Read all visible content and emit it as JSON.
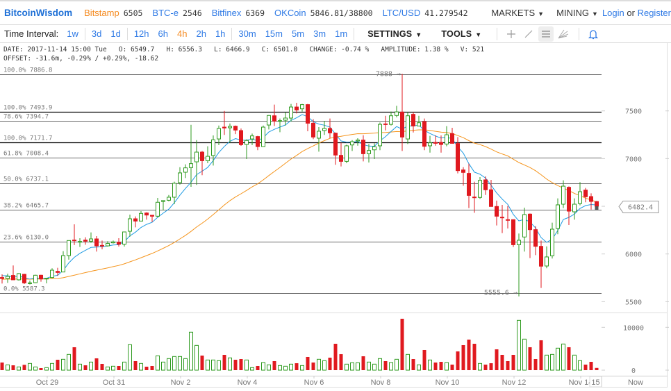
{
  "header": {
    "logo": "BitcoinWisdom",
    "markets": [
      {
        "name": "Bitstamp",
        "value": "6505",
        "active": true
      },
      {
        "name": "BTC-e",
        "value": "2546"
      },
      {
        "name": "Bitfinex",
        "value": "6369"
      },
      {
        "name": "OKCoin",
        "value": "5846.81/38800"
      },
      {
        "name": "LTC/USD",
        "value": "41.279542"
      }
    ],
    "markets_menu": "MARKETS",
    "mining_menu": "MINING",
    "login": "Login",
    "or": "or",
    "register": "Register"
  },
  "toolbar": {
    "label": "Time Interval:",
    "groups": [
      [
        "1w"
      ],
      [
        "3d",
        "1d"
      ],
      [
        "12h",
        "6h",
        "4h",
        "2h",
        "1h"
      ],
      [
        "30m",
        "15m",
        "5m",
        "3m",
        "1m"
      ]
    ],
    "selected": "4h",
    "settings": "SETTINGS",
    "tools": "TOOLS",
    "icons": [
      "crosshair-icon",
      "line-tool-icon",
      "horizontal-lines-icon",
      "fan-tool-icon",
      "bell-icon"
    ]
  },
  "info": {
    "line1": "DATE: 2017-11-14 15:00 Tue   O: 6549.7   H: 6556.3   L: 6466.9   C: 6501.0   CHANGE: -0.74 %   AMPLITUDE: 1.38 %   V: 521",
    "line2": "OFFSET: -31.6m, -0.29% / +0.29%, -18.62"
  },
  "colors": {
    "up": "#2e9a1f",
    "down": "#e0191f",
    "ma_fast": "#1e9be3",
    "ma_slow": "#f5941b",
    "accent": "#2f7ae5",
    "selected": "#f58a1f"
  },
  "chart_data": {
    "type": "candlestick",
    "interval": "4h",
    "fields": [
      "open",
      "high",
      "low",
      "close",
      "volume"
    ],
    "candles": [
      [
        5753,
        5787,
        5690,
        5743,
        1784
      ],
      [
        5743,
        5794,
        5697,
        5765,
        1243
      ],
      [
        5775,
        5879,
        5729,
        5729,
        1135
      ],
      [
        5729,
        5799,
        5721,
        5794,
        757
      ],
      [
        5787,
        5792,
        5685,
        5697,
        1243
      ],
      [
        5690,
        5721,
        5680,
        5697,
        1567
      ],
      [
        5699,
        5782,
        5695,
        5777,
        757
      ],
      [
        5777,
        5782,
        5709,
        5738,
        486
      ],
      [
        5738,
        5748,
        5692,
        5746,
        595
      ],
      [
        5753,
        5850,
        5746,
        5830,
        1567
      ],
      [
        5818,
        5855,
        5770,
        5806,
        2432
      ],
      [
        5811,
        6030,
        5811,
        5983,
        2540
      ],
      [
        5983,
        6141,
        5940,
        6141,
        3675
      ],
      [
        6146,
        6311,
        6093,
        6141,
        5351
      ],
      [
        6127,
        6165,
        6073,
        6131,
        1405
      ],
      [
        6146,
        6175,
        6097,
        6134,
        1135
      ],
      [
        6134,
        6226,
        6117,
        6158,
        1892
      ],
      [
        6158,
        6187,
        6025,
        6085,
        2757
      ],
      [
        6090,
        6141,
        6049,
        6085,
        1459
      ],
      [
        6085,
        6134,
        6078,
        6110,
        757
      ],
      [
        6117,
        6141,
        6110,
        6127,
        919
      ],
      [
        6122,
        6165,
        6078,
        6102,
        973
      ],
      [
        6102,
        6231,
        6078,
        6231,
        1892
      ],
      [
        6238,
        6413,
        6182,
        6369,
        5946
      ],
      [
        6369,
        6394,
        6279,
        6345,
        2108
      ],
      [
        6345,
        6449,
        6345,
        6425,
        1567
      ],
      [
        6430,
        6437,
        6360,
        6408,
        811
      ],
      [
        6406,
        6406,
        6335,
        6396,
        973
      ],
      [
        6396,
        6588,
        6384,
        6542,
        3351
      ],
      [
        6551,
        6559,
        6457,
        6559,
        1892
      ],
      [
        6563,
        6619,
        6551,
        6595,
        2703
      ],
      [
        6595,
        6758,
        6522,
        6741,
        3189
      ],
      [
        6748,
        6910,
        6728,
        6850,
        3189
      ],
      [
        6857,
        6940,
        6796,
        6903,
        2703
      ],
      [
        6906,
        7354,
        6704,
        6947,
        8864
      ],
      [
        6966,
        7194,
        6724,
        7068,
        5784
      ],
      [
        7068,
        7080,
        6826,
        6978,
        3405
      ],
      [
        6978,
        7129,
        6952,
        7024,
        2378
      ],
      [
        7032,
        7243,
        6927,
        7197,
        2378
      ],
      [
        7206,
        7347,
        7141,
        7316,
        2216
      ],
      [
        7330,
        7500,
        7248,
        7321,
        3567
      ],
      [
        7323,
        7369,
        7165,
        7338,
        2865
      ],
      [
        7340,
        7347,
        7257,
        7299,
        2432
      ],
      [
        7294,
        7316,
        7134,
        7146,
        2594
      ],
      [
        7148,
        7202,
        6995,
        7190,
        2378
      ],
      [
        7206,
        7262,
        7141,
        7238,
        595
      ],
      [
        7231,
        7238,
        7088,
        7126,
        973
      ],
      [
        7126,
        7347,
        7126,
        7330,
        1784
      ],
      [
        7352,
        7456,
        7306,
        7452,
        1243
      ],
      [
        7449,
        7566,
        7342,
        7393,
        2108
      ],
      [
        7391,
        7420,
        7277,
        7398,
        1081
      ],
      [
        7403,
        7486,
        7347,
        7425,
        919
      ],
      [
        7425,
        7573,
        7388,
        7541,
        1405
      ],
      [
        7541,
        7585,
        7473,
        7510,
        1622
      ],
      [
        7522,
        7573,
        7493,
        7566,
        1081
      ],
      [
        7566,
        7573,
        7287,
        7371,
        3081
      ],
      [
        7371,
        7413,
        7204,
        7226,
        1784
      ],
      [
        7214,
        7330,
        7073,
        7287,
        2540
      ],
      [
        7294,
        7396,
        7248,
        7316,
        2216
      ],
      [
        7316,
        7420,
        7214,
        7270,
        2919
      ],
      [
        7267,
        7274,
        6935,
        7037,
        6162
      ],
      [
        7034,
        7165,
        6918,
        6971,
        3730
      ],
      [
        6971,
        7146,
        6952,
        7134,
        1405
      ],
      [
        7143,
        7194,
        7080,
        7177,
        1730
      ],
      [
        7185,
        7214,
        7136,
        7194,
        1730
      ],
      [
        7194,
        7245,
        6971,
        7051,
        3243
      ],
      [
        7051,
        7153,
        6959,
        7085,
        1892
      ],
      [
        7092,
        7160,
        6995,
        7124,
        1405
      ],
      [
        7134,
        7379,
        7088,
        7359,
        2703
      ],
      [
        7364,
        7449,
        7296,
        7359,
        2108
      ],
      [
        7359,
        7493,
        7347,
        7449,
        1784
      ],
      [
        7452,
        7553,
        7432,
        7490,
        2540
      ],
      [
        7488,
        7888,
        7080,
        7226,
        12000
      ],
      [
        7206,
        7488,
        7153,
        7449,
        3675
      ],
      [
        7464,
        7488,
        7274,
        7342,
        2594
      ],
      [
        7342,
        7449,
        7340,
        7376,
        1243
      ],
      [
        7388,
        7420,
        7088,
        7129,
        4702
      ],
      [
        7134,
        7238,
        7063,
        7165,
        2378
      ],
      [
        7170,
        7243,
        7136,
        7160,
        1784
      ],
      [
        7170,
        7243,
        7063,
        7148,
        1946
      ],
      [
        7153,
        7340,
        7129,
        7250,
        1784
      ],
      [
        7262,
        7323,
        7158,
        7160,
        1297
      ],
      [
        7158,
        7226,
        6845,
        6874,
        4378
      ],
      [
        6881,
        6910,
        6716,
        6855,
        5837
      ],
      [
        6845,
        6947,
        6481,
        6614,
        7135
      ],
      [
        6597,
        6758,
        6432,
        6593,
        6162
      ],
      [
        6593,
        6806,
        6578,
        6772,
        1567
      ],
      [
        6777,
        6813,
        6619,
        6673,
        1297
      ],
      [
        6673,
        6777,
        6498,
        6498,
        1622
      ],
      [
        6498,
        6559,
        6299,
        6396,
        4865
      ],
      [
        6386,
        6515,
        6219,
        6381,
        3567
      ],
      [
        6360,
        6505,
        6267,
        6355,
        2108
      ],
      [
        6360,
        6360,
        6073,
        6097,
        3567
      ],
      [
        6097,
        6214,
        5555.6,
        6144,
        11621
      ],
      [
        6178,
        6486,
        6025,
        6413,
        7243
      ],
      [
        6418,
        6425,
        5957,
        6255,
        5351
      ],
      [
        6255,
        6292,
        5988,
        6080,
        2594
      ],
      [
        6080,
        6141,
        5644,
        5872,
        6973
      ],
      [
        5874,
        6080,
        5850,
        5969,
        3513
      ],
      [
        5981,
        6328,
        5952,
        6260,
        3675
      ],
      [
        6267,
        6583,
        6207,
        6515,
        5135
      ],
      [
        6522,
        6772,
        6481,
        6711,
        6108
      ],
      [
        6699,
        6709,
        6304,
        6449,
        5351
      ],
      [
        6442,
        6583,
        6360,
        6522,
        3513
      ],
      [
        6529,
        6753,
        6510,
        6653,
        2216
      ],
      [
        6670,
        6692,
        6542,
        6600,
        1297
      ],
      [
        6602,
        6636,
        6466,
        6551,
        1946
      ],
      [
        6549.7,
        6556.3,
        6466.9,
        6501.0,
        521
      ]
    ],
    "price_ticks": [
      "7500",
      "7000",
      "6000",
      "5500"
    ],
    "volume_ticks": [
      "10000",
      "0"
    ],
    "date_ticks": [
      "Oct 29",
      "Oct 31",
      "Nov 2",
      "Nov 4",
      "Nov 6",
      "Nov 8",
      "Nov 10",
      "Nov 12",
      "Nov 14"
    ],
    "cursor_hour": "15",
    "now_label": "Now",
    "current_price": "6482.4",
    "high_marker": "7888",
    "low_marker": "5555.6",
    "fib_levels": [
      {
        "label": "100.0%",
        "value": "7886.8",
        "dark": false
      },
      {
        "label": "100.0%",
        "value": "7493.9",
        "dark": true
      },
      {
        "label": "78.6%",
        "value": "7394.7",
        "dark": false
      },
      {
        "label": "100.0%",
        "value": "7171.7",
        "dark": true
      },
      {
        "label": "61.8%",
        "value": "7008.4",
        "dark": false
      },
      {
        "label": "50.0%",
        "value": "6737.1",
        "dark": false
      },
      {
        "label": "38.2%",
        "value": "6465.7",
        "dark": false
      },
      {
        "label": "23.6%",
        "value": "6130.0",
        "dark": false
      },
      {
        "label": "0.0%",
        "value": "5587.3",
        "dark": false
      }
    ]
  }
}
